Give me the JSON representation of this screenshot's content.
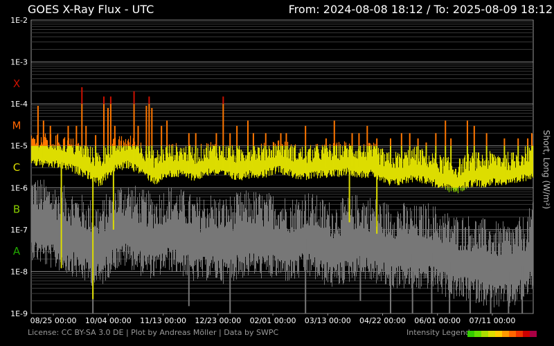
{
  "header": {
    "title": "GOES X-Ray Flux - UTC",
    "range": "From: 2024-08-08 18:12  /  To: 2025-08-09 18:12"
  },
  "footer": {
    "license": "License: CC BY-SA 3.0 DE | Plot by Andreas Möller | Data by SWPC",
    "legend_label": "Intensity Legend",
    "legend_colors": [
      "#33cc00",
      "#66dd00",
      "#aadd00",
      "#dddd00",
      "#ffcc00",
      "#ff9900",
      "#ff6600",
      "#ee3300",
      "#cc0000",
      "#aa0044"
    ]
  },
  "colors": {
    "short": "#777777",
    "long_A": "#22aa00",
    "long_B": "#88cc00",
    "long_C": "#dddd00",
    "long_M": "#ff7700",
    "long_X": "#cc1100"
  },
  "chart_data": {
    "type": "line",
    "title": "GOES X-Ray Flux - UTC",
    "ylabel": "Short, Long (W/m²)",
    "y_scale": "log",
    "ylim": [
      1e-09,
      0.01
    ],
    "y_ticks": [
      "1E-2",
      "1E-3",
      "1E-4",
      "1E-5",
      "1E-6",
      "1E-7",
      "1E-8",
      "1E-9"
    ],
    "flare_classes": [
      {
        "label": "X",
        "flux": 0.0001,
        "color": "#cc1100"
      },
      {
        "label": "M",
        "flux": 1e-05,
        "color": "#ff6600"
      },
      {
        "label": "C",
        "flux": 1e-06,
        "color": "#dddd00"
      },
      {
        "label": "B",
        "flux": 1e-07,
        "color": "#88cc00"
      },
      {
        "label": "A",
        "flux": 1e-08,
        "color": "#22aa00"
      }
    ],
    "x_ticks": [
      "08/25 00:00",
      "10/04 00:00",
      "11/13 00:00",
      "12/23 00:00",
      "02/01 00:00",
      "03/13 00:00",
      "04/22 00:00",
      "06/01 00:00",
      "07/11 00:00"
    ],
    "x_tick_days": [
      16.2,
      56.2,
      96.2,
      136.2,
      176.2,
      216.2,
      256.2,
      296.2,
      336.2
    ],
    "x_range_days": [
      0,
      366
    ],
    "series": [
      {
        "name": "Long",
        "baseline": {
          "days": [
            0,
            10,
            20,
            30,
            40,
            50,
            60,
            70,
            80,
            90,
            100,
            110,
            120,
            130,
            140,
            150,
            160,
            170,
            180,
            190,
            200,
            210,
            220,
            230,
            240,
            250,
            260,
            270,
            280,
            290,
            300,
            310,
            320,
            330,
            340,
            350,
            360,
            366
          ],
          "flux": [
            6e-06,
            5e-06,
            5e-06,
            4e-06,
            3e-06,
            1.8e-06,
            4e-06,
            5e-06,
            3.5e-06,
            2e-06,
            3e-06,
            3e-06,
            2.5e-06,
            3.5e-06,
            3e-06,
            2.5e-06,
            3e-06,
            3e-06,
            4e-06,
            3e-06,
            2.5e-06,
            3e-06,
            3e-06,
            3.5e-06,
            3e-06,
            3e-06,
            1.8e-06,
            2e-06,
            2.5e-06,
            2e-06,
            1.5e-06,
            1.2e-06,
            1.8e-06,
            1.8e-06,
            2e-06,
            1.8e-06,
            2.5e-06,
            3e-06
          ]
        },
        "peaks": [
          {
            "day": 5,
            "flux": 9e-05
          },
          {
            "day": 9,
            "flux": 4e-05
          },
          {
            "day": 14,
            "flux": 3e-05
          },
          {
            "day": 20,
            "flux": 1.2e-05
          },
          {
            "day": 24,
            "flux": 1.5e-05
          },
          {
            "day": 27,
            "flux": 3e-05
          },
          {
            "day": 33,
            "flux": 3e-05
          },
          {
            "day": 37,
            "flux": 0.00025
          },
          {
            "day": 40,
            "flux": 3e-05
          },
          {
            "day": 47,
            "flux": 1.8e-05
          },
          {
            "day": 53,
            "flux": 0.00015
          },
          {
            "day": 56,
            "flux": 8e-05
          },
          {
            "day": 58,
            "flux": 0.00015
          },
          {
            "day": 61,
            "flux": 3e-05
          },
          {
            "day": 75,
            "flux": 0.0002
          },
          {
            "day": 78,
            "flux": 3e-05
          },
          {
            "day": 84,
            "flux": 9e-05
          },
          {
            "day": 86,
            "flux": 0.00015
          },
          {
            "day": 88,
            "flux": 8e-05
          },
          {
            "day": 95,
            "flux": 3e-05
          },
          {
            "day": 99,
            "flux": 4e-05
          },
          {
            "day": 115,
            "flux": 2e-05
          },
          {
            "day": 120,
            "flux": 2e-05
          },
          {
            "day": 135,
            "flux": 2e-05
          },
          {
            "day": 140,
            "flux": 0.00015
          },
          {
            "day": 145,
            "flux": 2e-05
          },
          {
            "day": 150,
            "flux": 3e-05
          },
          {
            "day": 158,
            "flux": 4e-05
          },
          {
            "day": 162,
            "flux": 2e-05
          },
          {
            "day": 171,
            "flux": 2e-05
          },
          {
            "day": 182,
            "flux": 2e-05
          },
          {
            "day": 186,
            "flux": 2e-05
          },
          {
            "day": 200,
            "flux": 3e-05
          },
          {
            "day": 215,
            "flux": 1.5e-05
          },
          {
            "day": 221,
            "flux": 4e-05
          },
          {
            "day": 234,
            "flux": 2e-05
          },
          {
            "day": 239,
            "flux": 2e-05
          },
          {
            "day": 245,
            "flux": 3e-05
          },
          {
            "day": 252,
            "flux": 1.5e-05
          },
          {
            "day": 262,
            "flux": 1.5e-05
          },
          {
            "day": 270,
            "flux": 2e-05
          },
          {
            "day": 276,
            "flux": 2e-05
          },
          {
            "day": 282,
            "flux": 1.5e-05
          },
          {
            "day": 288,
            "flux": 1.2e-05
          },
          {
            "day": 295,
            "flux": 2e-05
          },
          {
            "day": 302,
            "flux": 4e-05
          },
          {
            "day": 306,
            "flux": 1.5e-05
          },
          {
            "day": 318,
            "flux": 4e-05
          },
          {
            "day": 323,
            "flux": 3e-05
          },
          {
            "day": 332,
            "flux": 2e-05
          },
          {
            "day": 345,
            "flux": 1.5e-05
          },
          {
            "day": 355,
            "flux": 1.5e-05
          },
          {
            "day": 362,
            "flux": 1.5e-05
          },
          {
            "day": 365,
            "flux": 2e-05
          }
        ],
        "dips": [
          {
            "day": 22,
            "flux": 1.2e-08
          },
          {
            "day": 45,
            "flux": 2.2e-09
          },
          {
            "day": 60,
            "flux": 1e-07
          },
          {
            "day": 232,
            "flux": 1.5e-07
          },
          {
            "day": 252,
            "flux": 8e-08
          }
        ]
      },
      {
        "name": "Short",
        "baseline": {
          "days": [
            0,
            10,
            20,
            30,
            40,
            50,
            60,
            70,
            80,
            90,
            100,
            110,
            120,
            130,
            140,
            150,
            160,
            170,
            180,
            190,
            200,
            210,
            220,
            230,
            240,
            250,
            260,
            270,
            280,
            290,
            300,
            310,
            320,
            330,
            340,
            350,
            360,
            366
          ],
          "flux": [
            1.5e-07,
            1e-07,
            8e-08,
            6e-08,
            4e-08,
            3e-08,
            8e-08,
            1e-07,
            6e-08,
            5e-08,
            8e-08,
            6e-08,
            4e-08,
            5e-08,
            4e-08,
            5e-08,
            6e-08,
            5e-08,
            5e-08,
            4e-08,
            6e-08,
            4e-08,
            3e-08,
            4e-08,
            5e-08,
            4e-08,
            3e-08,
            3e-08,
            2.5e-08,
            3e-08,
            2e-08,
            1.5e-08,
            1.5e-08,
            1.2e-08,
            1e-08,
            1e-08,
            1.5e-08,
            3e-08
          ]
        },
        "dips": [
          {
            "day": 45,
            "flux": 1e-09
          },
          {
            "day": 115,
            "flux": 1.5e-09
          },
          {
            "day": 145,
            "flux": 1e-09
          },
          {
            "day": 200,
            "flux": 1e-09
          },
          {
            "day": 240,
            "flux": 2e-09
          },
          {
            "day": 262,
            "flux": 1e-09
          },
          {
            "day": 278,
            "flux": 1e-09
          },
          {
            "day": 292,
            "flux": 1e-09
          },
          {
            "day": 305,
            "flux": 1e-09
          },
          {
            "day": 320,
            "flux": 1e-09
          },
          {
            "day": 335,
            "flux": 1e-09
          },
          {
            "day": 348,
            "flux": 1e-09
          },
          {
            "day": 358,
            "flux": 1e-09
          }
        ]
      }
    ]
  }
}
